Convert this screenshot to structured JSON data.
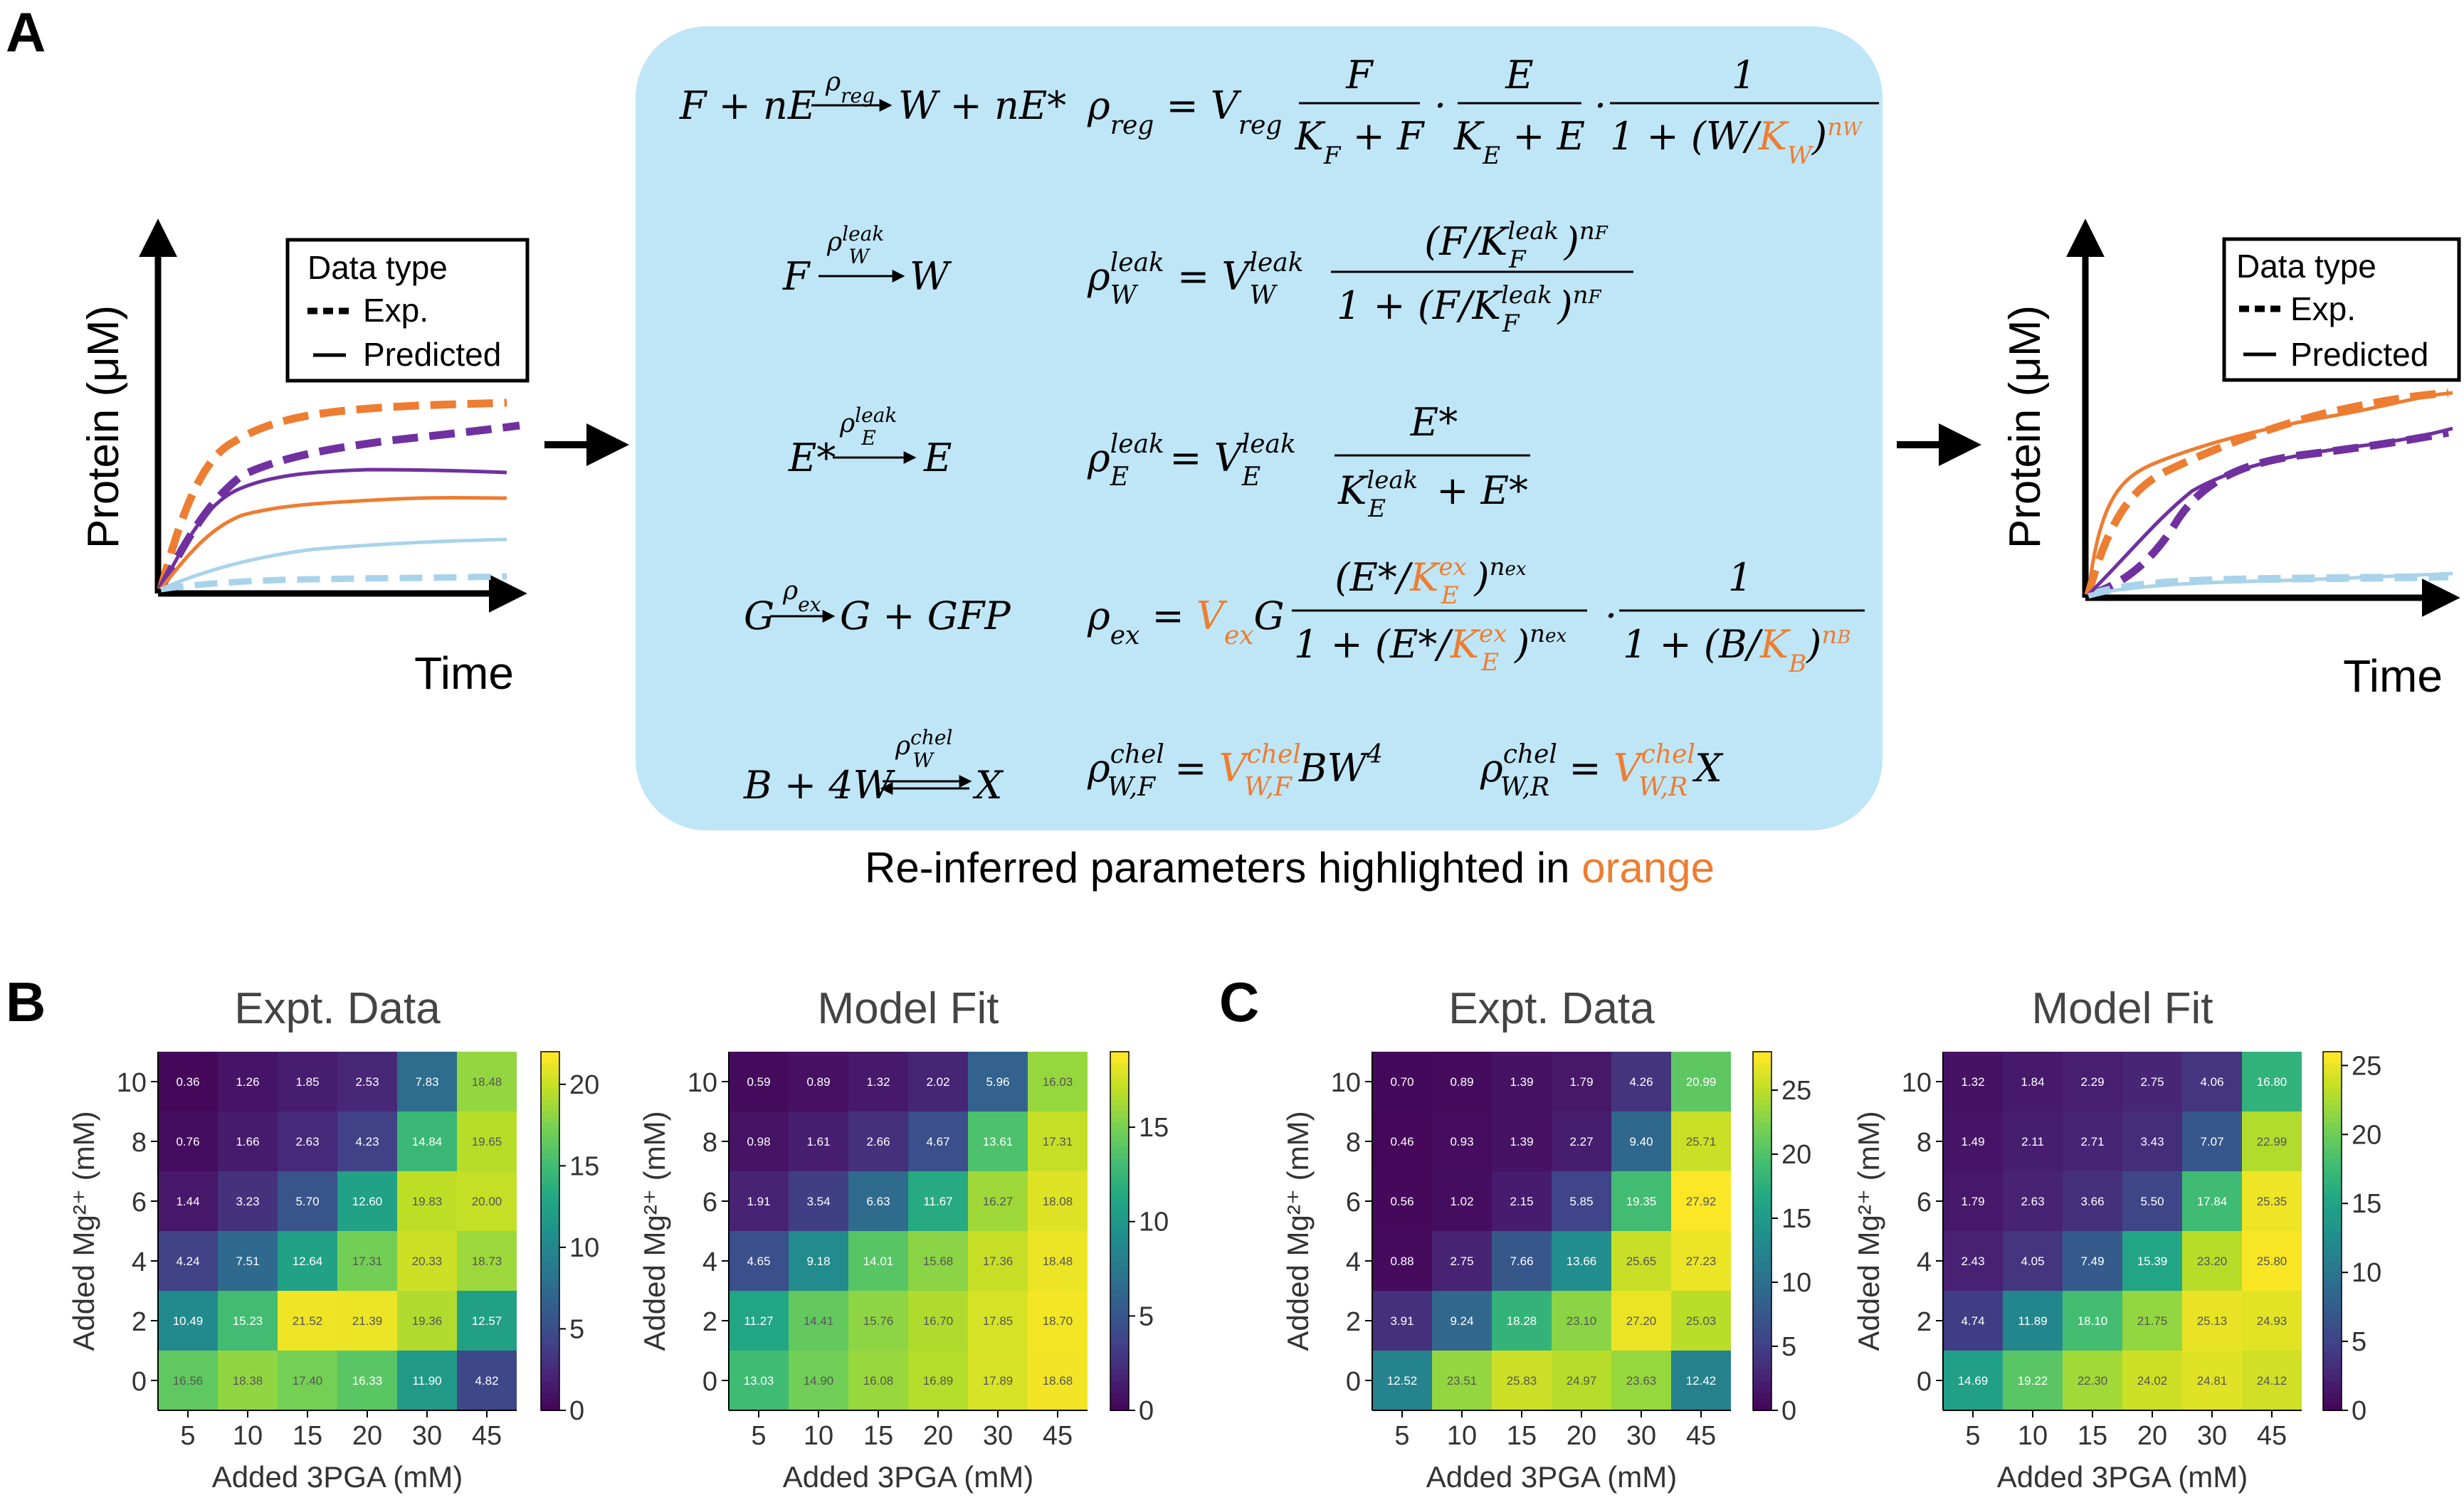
{
  "panel_labels": {
    "a": "A",
    "b": "B",
    "c": "C"
  },
  "colors": {
    "exp_orange": "#ed7d31",
    "exp_purple": "#7030a0",
    "exp_blue": "#a9d3ea",
    "box_bg": "#bfe6f6",
    "param_orange": "#ed7d31"
  },
  "panel_a": {
    "ylabel": "Protein (μM)",
    "xlabel": "Time",
    "legend_title": "Data type",
    "legend_exp": "Exp.",
    "legend_pred": "Predicted",
    "caption_prefix": "Re-inferred parameters highlighted in ",
    "caption_highlight": "orange"
  },
  "reactions": [
    {
      "lhs": "F + nE",
      "rate": "ρ_reg",
      "rhs": "W + nE*"
    },
    {
      "lhs": "F",
      "rate": "ρ_W^leak",
      "rhs": "W"
    },
    {
      "lhs": "E*",
      "rate": "ρ_E^leak",
      "rhs": "E"
    },
    {
      "lhs": "G",
      "rate": "ρ_ex",
      "rhs": "G + GFP"
    },
    {
      "lhs": "B + 4W",
      "rate": "ρ_W^chel",
      "rhs": "X"
    }
  ],
  "highlighted_parameters": [
    "K_W",
    "V_ex",
    "K_E^ex",
    "K_B",
    "V_W,F^chel",
    "V_W,R^chel"
  ],
  "chart_data": [
    {
      "type": "heatmap",
      "title": "Expt. Data",
      "xlabel": "Added 3PGA (mM)",
      "ylabel": "Added Mg²⁺ (mM)",
      "x": [
        "5",
        "10",
        "15",
        "20",
        "30",
        "45"
      ],
      "y": [
        "10",
        "8",
        "6",
        "4",
        "2",
        "0"
      ],
      "values": [
        [
          0.36,
          1.26,
          1.85,
          2.53,
          7.83,
          18.48
        ],
        [
          0.76,
          1.66,
          2.63,
          4.23,
          14.84,
          19.65
        ],
        [
          1.44,
          3.23,
          5.7,
          12.6,
          19.83,
          20.0
        ],
        [
          4.24,
          7.51,
          12.64,
          17.31,
          20.33,
          18.73
        ],
        [
          10.49,
          15.23,
          21.52,
          21.39,
          19.36,
          12.57
        ],
        [
          16.56,
          18.38,
          17.4,
          16.33,
          11.9,
          4.82
        ]
      ],
      "vmin": 0,
      "vmax": 22,
      "colorbar_ticks": [
        0,
        5,
        10,
        15,
        20
      ]
    },
    {
      "type": "heatmap",
      "title": "Model Fit",
      "xlabel": "Added 3PGA (mM)",
      "ylabel": "Added Mg²⁺ (mM)",
      "x": [
        "5",
        "10",
        "15",
        "20",
        "30",
        "45"
      ],
      "y": [
        "10",
        "8",
        "6",
        "4",
        "2",
        "0"
      ],
      "values": [
        [
          0.59,
          0.89,
          1.32,
          2.02,
          5.96,
          16.03
        ],
        [
          0.98,
          1.61,
          2.66,
          4.67,
          13.61,
          17.31
        ],
        [
          1.91,
          3.54,
          6.63,
          11.67,
          16.27,
          18.08
        ],
        [
          4.65,
          9.18,
          14.01,
          15.68,
          17.36,
          18.48
        ],
        [
          11.27,
          14.41,
          15.76,
          16.7,
          17.85,
          18.7
        ],
        [
          13.03,
          14.9,
          16.08,
          16.89,
          17.89,
          18.68
        ]
      ],
      "vmin": 0,
      "vmax": 19,
      "colorbar_ticks": [
        0,
        5,
        10,
        15
      ]
    },
    {
      "type": "heatmap",
      "title": "Expt. Data",
      "xlabel": "Added 3PGA (mM)",
      "ylabel": "Added Mg²⁺ (mM)",
      "x": [
        "5",
        "10",
        "15",
        "20",
        "30",
        "45"
      ],
      "y": [
        "10",
        "8",
        "6",
        "4",
        "2",
        "0"
      ],
      "values": [
        [
          0.7,
          0.89,
          1.39,
          1.79,
          4.26,
          20.99
        ],
        [
          0.46,
          0.93,
          1.39,
          2.27,
          9.4,
          25.71
        ],
        [
          0.56,
          1.02,
          2.15,
          5.85,
          19.35,
          27.92
        ],
        [
          0.88,
          2.75,
          7.66,
          13.66,
          25.65,
          27.23
        ],
        [
          3.91,
          9.24,
          18.28,
          23.1,
          27.2,
          25.03
        ],
        [
          12.52,
          23.51,
          25.83,
          24.97,
          23.63,
          12.42
        ]
      ],
      "vmin": 0,
      "vmax": 28,
      "colorbar_ticks": [
        0,
        5,
        10,
        15,
        20,
        25
      ]
    },
    {
      "type": "heatmap",
      "title": "Model Fit",
      "xlabel": "Added 3PGA (mM)",
      "ylabel": "Added Mg²⁺ (mM)",
      "x": [
        "5",
        "10",
        "15",
        "20",
        "30",
        "45"
      ],
      "y": [
        "10",
        "8",
        "6",
        "4",
        "2",
        "0"
      ],
      "values": [
        [
          1.32,
          1.84,
          2.29,
          2.75,
          4.06,
          16.8
        ],
        [
          1.49,
          2.11,
          2.71,
          3.43,
          7.07,
          22.99
        ],
        [
          1.79,
          2.63,
          3.66,
          5.5,
          17.84,
          25.35
        ],
        [
          2.43,
          4.05,
          7.49,
          15.39,
          23.2,
          25.8
        ],
        [
          4.74,
          11.89,
          18.1,
          21.75,
          25.13,
          24.93
        ],
        [
          14.69,
          19.22,
          22.3,
          24.02,
          24.81,
          24.12
        ]
      ],
      "vmin": 0,
      "vmax": 26,
      "colorbar_ticks": [
        0,
        5,
        10,
        15,
        20,
        25
      ]
    }
  ]
}
